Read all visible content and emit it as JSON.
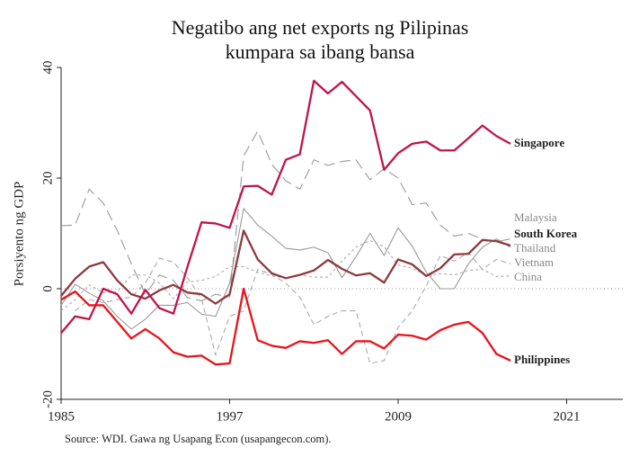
{
  "chart_data": {
    "type": "line",
    "title": [
      "Negatibo ang net exports ng Pilipinas",
      "kumpara sa ibang bansa"
    ],
    "ylabel": "Porsiyento ng GDP",
    "source": "Source: WDI. Gawa ng Usapang Econ (usapangecon.com).",
    "x": [
      1985,
      1986,
      1987,
      1988,
      1989,
      1990,
      1991,
      1992,
      1993,
      1994,
      1995,
      1996,
      1997,
      1998,
      1999,
      2000,
      2001,
      2002,
      2003,
      2004,
      2005,
      2006,
      2007,
      2008,
      2009,
      2010,
      2011,
      2012,
      2013,
      2014,
      2015,
      2016,
      2017
    ],
    "xlim": [
      1985,
      2025
    ],
    "xticks": [
      1985,
      1997,
      2009,
      2021
    ],
    "ylim": [
      -20,
      40
    ],
    "yticks": [
      -20,
      0,
      20,
      40
    ],
    "series": [
      {
        "name": "Malaysia",
        "color": "#999999",
        "dash": "12,6",
        "values": [
          11.4,
          11.5,
          18,
          15.5,
          10.5,
          4.5,
          -1,
          2.5,
          1.5,
          -1.6,
          -2.2,
          -1,
          -1.5,
          24,
          28.5,
          22.5,
          19.5,
          18,
          23.3,
          22.3,
          23,
          23.3,
          19.7,
          21.7,
          20,
          15.2,
          15.5,
          11.5,
          9.5,
          10,
          9,
          8.5,
          9
        ]
      },
      {
        "name": "Thailand",
        "color": "#999999",
        "dash": "none",
        "values": [
          -3,
          0.8,
          -0.8,
          -2.2,
          -5,
          -7.3,
          -5.5,
          -3,
          -3,
          -2.5,
          -4.6,
          -5,
          1,
          14.5,
          11.5,
          9.5,
          7.3,
          7,
          7.5,
          6.5,
          2,
          5.8,
          10,
          6,
          11,
          7.7,
          3,
          0,
          0,
          4.5,
          7.5,
          9,
          7.5
        ]
      },
      {
        "name": "Vietnam",
        "color": "#aaaaaa",
        "dash": "6,4",
        "values": [
          null,
          -4,
          -2,
          -2.5,
          -2,
          -1.5,
          1,
          5.5,
          4.8,
          2,
          -1.8,
          -12,
          -5,
          -4,
          3.5,
          2.6,
          1,
          -1.5,
          -6.5,
          -5,
          -4,
          -4,
          -13.5,
          -13,
          -7,
          -4,
          0.5,
          6,
          5,
          6.5,
          3.5,
          5.3,
          4.5
        ]
      },
      {
        "name": "China",
        "color": "#aaaaaa",
        "dash": "3,3",
        "values": [
          -4,
          -2,
          0.7,
          -0.7,
          -0.6,
          2.5,
          2.5,
          1,
          -1.8,
          1.2,
          1.5,
          2.2,
          4,
          4,
          3,
          2.3,
          2,
          2.5,
          2.1,
          2.1,
          5,
          7.5,
          8.7,
          7.6,
          4.3,
          3.7,
          2.4,
          2.7,
          2.5,
          3.3,
          3.5,
          2.2,
          2.3
        ]
      },
      {
        "name": "South Korea",
        "color": "#8e3a3e",
        "dash": "none",
        "values": [
          -1.3,
          1.8,
          4,
          4.8,
          1.5,
          -1,
          -1.8,
          -0.3,
          0.7,
          -0.7,
          -1,
          -2.7,
          -1,
          10.5,
          5.3,
          2.8,
          1.9,
          2.5,
          3.3,
          5.2,
          3.6,
          2.4,
          2.8,
          1.1,
          5.3,
          4.4,
          2.3,
          3.7,
          6.2,
          6.3,
          8.8,
          8.6,
          7.8
        ]
      },
      {
        "name": "Singapore",
        "color": "#c0144c",
        "dash": "none",
        "values": [
          -8,
          -5,
          -5.5,
          0,
          -1,
          -4.5,
          -0.2,
          -3.5,
          -4.5,
          4,
          12,
          11.8,
          11,
          18.5,
          18.6,
          17,
          23.3,
          24.3,
          37.6,
          35.3,
          37.4,
          34.8,
          32.2,
          21.5,
          24.5,
          26.2,
          26.6,
          25,
          25,
          27.2,
          29.5,
          27.6,
          26.2
        ]
      },
      {
        "name": "Philippines",
        "color": "#e8141c",
        "dash": "none",
        "values": [
          -2,
          -0.5,
          -3,
          -3,
          -6,
          -9,
          -7.3,
          -9,
          -11.5,
          -12.3,
          -12.1,
          -13.7,
          -13.5,
          0,
          -9.3,
          -10.3,
          -10.7,
          -9.5,
          -9.8,
          -9.3,
          -11.8,
          -9.5,
          -9.5,
          -10.8,
          -8.3,
          -8.5,
          -9.2,
          -7.5,
          -6.5,
          -6,
          -8,
          -11.8,
          -13
        ]
      }
    ]
  }
}
